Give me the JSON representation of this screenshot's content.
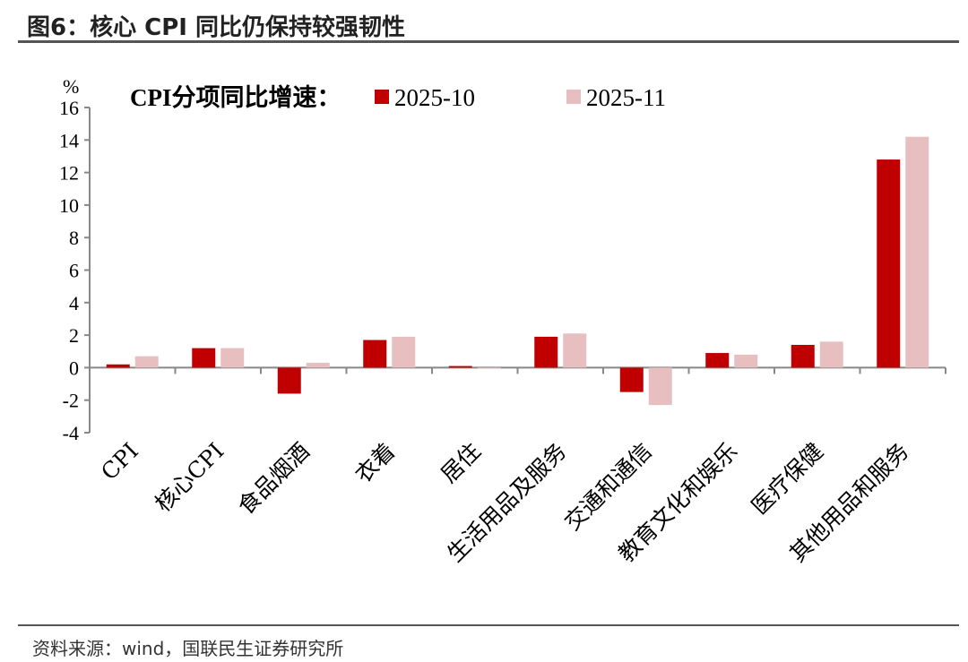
{
  "title": "图6：核心 CPI 同比仍保持较强韧性",
  "source": "资料来源：wind，国联民生证券研究所",
  "chart_data": {
    "type": "bar",
    "legend_title": "CPI分项同比增速：",
    "yunit": "%",
    "ylim": [
      -4,
      16
    ],
    "yticks": [
      -4,
      -2,
      0,
      2,
      4,
      6,
      8,
      10,
      12,
      14,
      16
    ],
    "legend_placement": "top",
    "grid": false,
    "categories": [
      "CPI",
      "核心CPI",
      "食品烟酒",
      "衣着",
      "居住",
      "生活用品及服务",
      "交通和通信",
      "教育文化和娱乐",
      "医疗保健",
      "其他用品和服务"
    ],
    "series": [
      {
        "name": "2025-10",
        "color": "#C00000",
        "values": [
          0.2,
          1.2,
          -1.6,
          1.7,
          0.1,
          1.9,
          -1.5,
          0.9,
          1.4,
          12.8
        ]
      },
      {
        "name": "2025-11",
        "color": "#E8BFC0",
        "values": [
          0.7,
          1.2,
          0.3,
          1.9,
          0.0,
          2.1,
          -2.3,
          0.8,
          1.6,
          14.2
        ]
      }
    ]
  }
}
